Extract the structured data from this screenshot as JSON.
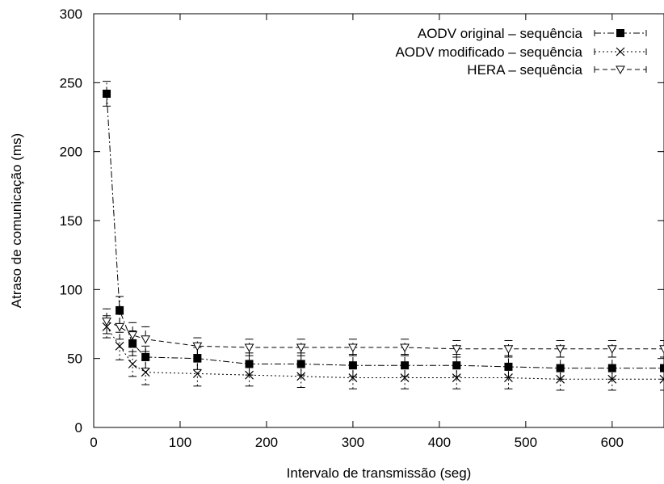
{
  "chart_data": {
    "type": "line",
    "title": "",
    "xlabel": "Intervalo de transmissão (seg)",
    "ylabel": "Atraso de comunicação (ms)",
    "xlim": [
      0,
      660
    ],
    "ylim": [
      0,
      300
    ],
    "xticks": [
      0,
      100,
      200,
      300,
      400,
      500,
      600
    ],
    "yticks": [
      0,
      50,
      100,
      150,
      200,
      250,
      300
    ],
    "grid": false,
    "legend_position": "top-right",
    "x": [
      15,
      30,
      45,
      60,
      120,
      180,
      240,
      300,
      360,
      420,
      480,
      540,
      600,
      660
    ],
    "series": [
      {
        "name": "AODV original – sequência",
        "marker": "filled-square",
        "dash": "dash-dot",
        "values": [
          242,
          85,
          61,
          51,
          50,
          46,
          46,
          45,
          45,
          45,
          44,
          43,
          43,
          43
        ],
        "err": [
          9,
          10,
          9,
          8,
          8,
          8,
          8,
          8,
          8,
          8,
          8,
          8,
          8,
          8
        ]
      },
      {
        "name": "AODV modificado – sequência",
        "marker": "cross",
        "dash": "dotted",
        "values": [
          73,
          59,
          46,
          40,
          39,
          38,
          37,
          36,
          36,
          36,
          36,
          35,
          35,
          35
        ],
        "err": [
          8,
          10,
          9,
          9,
          9,
          8,
          8,
          8,
          8,
          8,
          8,
          8,
          8,
          8
        ]
      },
      {
        "name": "HERA – sequência",
        "marker": "open-triangle-down",
        "dash": "dashed",
        "values": [
          77,
          73,
          67,
          64,
          59,
          58,
          58,
          58,
          58,
          57,
          57,
          57,
          57,
          57
        ],
        "err": [
          9,
          9,
          9,
          9,
          6,
          6,
          6,
          6,
          6,
          6,
          6,
          6,
          6,
          6
        ]
      }
    ]
  }
}
